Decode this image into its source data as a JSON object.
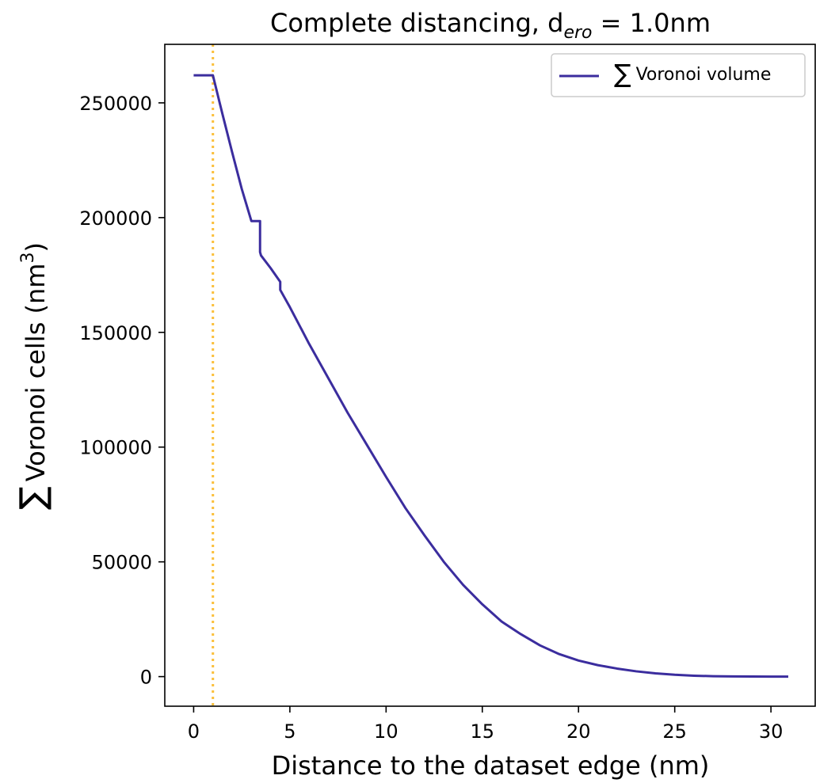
{
  "chart_data": {
    "type": "line",
    "title": "Complete distancing, d",
    "title_subscript": "ero",
    "title_suffix": " = 1.0nm",
    "xlabel": "Distance to the dataset edge (nm)",
    "ylabel_symbol": "∑",
    "ylabel": "Voronoi cells (nm",
    "ylabel_superscript": "3",
    "ylabel_close": ")",
    "xlim": [
      -1.5,
      32.3
    ],
    "ylim": [
      -12900,
      275500
    ],
    "xticks": [
      0,
      5,
      10,
      15,
      20,
      25,
      30
    ],
    "xtick_labels": [
      "0",
      "5",
      "10",
      "15",
      "20",
      "25",
      "30"
    ],
    "yticks": [
      0,
      50000,
      100000,
      150000,
      200000,
      250000
    ],
    "ytick_labels": [
      "0",
      "50000",
      "100000",
      "150000",
      "200000",
      "250000"
    ],
    "grid": false,
    "legend_position": "top-right",
    "vline": {
      "x": 1.0,
      "color": "#fbbf3a",
      "style": "dotted"
    },
    "series": [
      {
        "name": "Voronoi volume",
        "legend_symbol": "∑",
        "color": "#3b2d9e",
        "x": [
          0,
          1.0,
          1.5,
          2.0,
          2.5,
          3.0,
          3.45,
          3.45,
          3.5,
          4.0,
          4.5,
          4.5,
          5.0,
          6.0,
          7.0,
          8.0,
          9.0,
          10.0,
          11.0,
          12.0,
          13.0,
          14.0,
          15.0,
          16.0,
          17.0,
          18.0,
          19.0,
          20.0,
          21.0,
          22.0,
          23.0,
          24.0,
          25.0,
          26.0,
          27.0,
          28.0,
          29.0,
          30.0,
          30.9
        ],
        "y": [
          262000,
          262000,
          245000,
          228500,
          212500,
          198500,
          198500,
          185000,
          183500,
          178000,
          172000,
          168500,
          161000,
          145000,
          130000,
          115000,
          101000,
          87000,
          73500,
          61500,
          50000,
          40000,
          31500,
          24000,
          18500,
          13600,
          9800,
          7000,
          5000,
          3500,
          2300,
          1400,
          800,
          400,
          180,
          60,
          15,
          0,
          0
        ]
      }
    ]
  }
}
